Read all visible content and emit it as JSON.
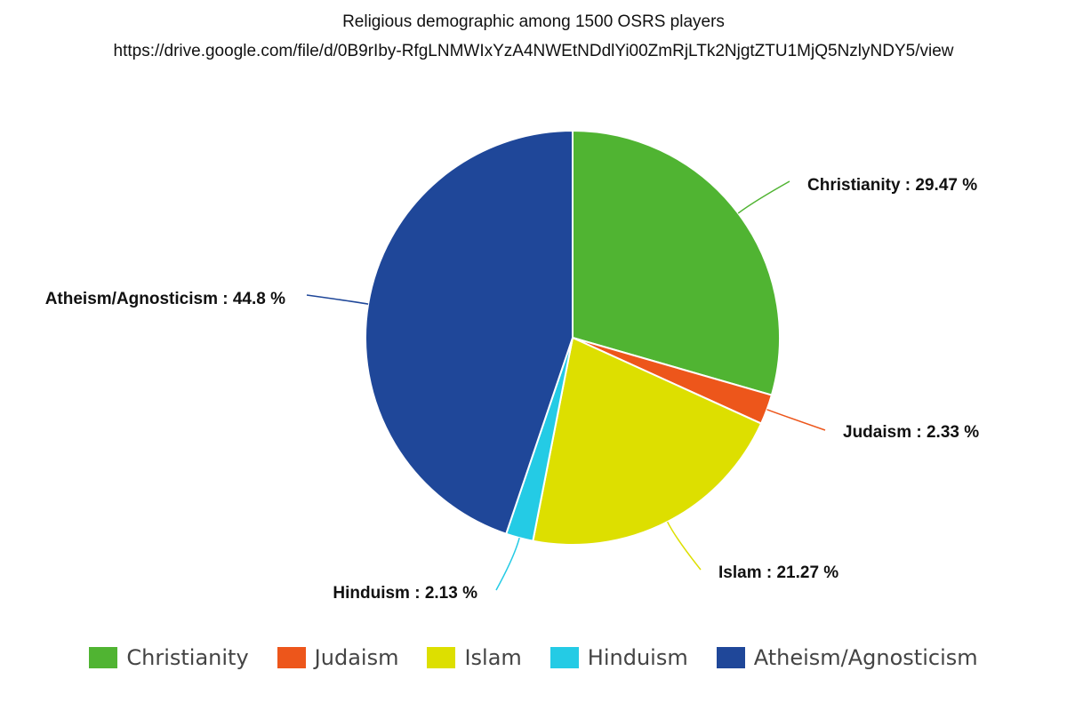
{
  "chart_data": {
    "type": "pie",
    "title": "Religious demographic among 1500 OSRS players",
    "subtitle": "https://drive.google.com/file/d/0B9rIby-RfgLNMWIxYzA4NWEtNDdlYi00ZmRjLTk2NjgtZTU1MjQ5NzlyNDY5/view",
    "slices": [
      {
        "name": "Christianity",
        "value": 29.47,
        "label": "Christianity : 29.47 %",
        "color": "#50b432"
      },
      {
        "name": "Judaism",
        "value": 2.33,
        "label": "Judaism : 2.33 %",
        "color": "#ed561b"
      },
      {
        "name": "Islam",
        "value": 21.27,
        "label": "Islam : 21.27 %",
        "color": "#dddf00"
      },
      {
        "name": "Hinduism",
        "value": 2.13,
        "label": "Hinduism : 2.13 %",
        "color": "#24cbe5"
      },
      {
        "name": "Atheism/Agnosticism",
        "value": 44.8,
        "label": "Atheism/Agnosticism : 44.8 %",
        "color": "#1f4799"
      }
    ],
    "legend_position": "bottom"
  }
}
